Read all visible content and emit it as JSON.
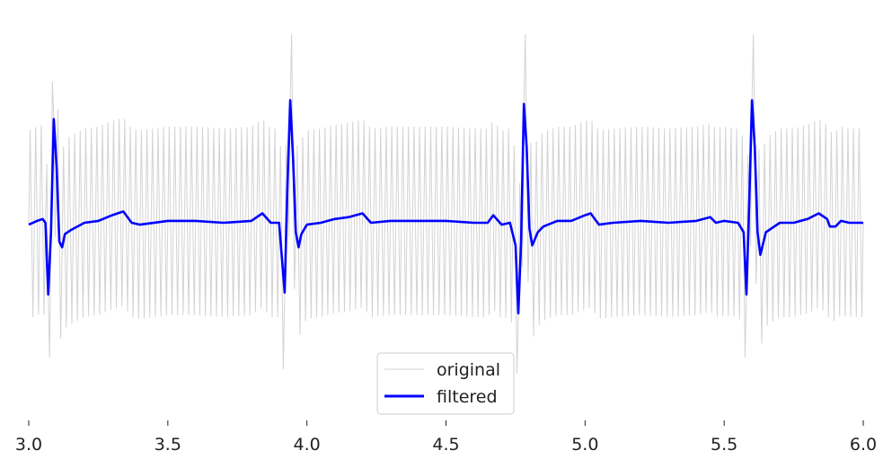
{
  "chart_data": {
    "type": "line",
    "title": "",
    "xlabel": "",
    "ylabel": "",
    "xlim": [
      3.0,
      6.0
    ],
    "ylim": [
      -1.0,
      1.0
    ],
    "x_ticks": [
      3.0,
      3.5,
      4.0,
      4.5,
      5.0,
      5.5,
      6.0
    ],
    "x_tick_labels": [
      "3.0",
      "3.5",
      "4.0",
      "4.5",
      "5.0",
      "5.5",
      "6.0"
    ],
    "y_axis_visible": false,
    "grid": false,
    "legend": {
      "placement": "bottom-center",
      "entries": [
        "original",
        "filtered"
      ]
    },
    "series": [
      {
        "name": "original",
        "color": "#d3d3d3",
        "sampling": {
          "x_start": 3.0,
          "x_end": 6.0,
          "count": 601
        },
        "description_of_values": "high-frequency oscillation (~50 Hz) of amplitude ~0.5 superimposed on the filtered ECG signal",
        "oscillation_amplitude": 0.5,
        "oscillation_frequency_hz": 50
      },
      {
        "name": "filtered",
        "color": "#0000ff",
        "points": [
          [
            3.0,
            -0.01
          ],
          [
            3.03,
            0.01
          ],
          [
            3.05,
            0.02
          ],
          [
            3.06,
            0.0
          ],
          [
            3.07,
            -0.38
          ],
          [
            3.08,
            -0.05
          ],
          [
            3.09,
            0.55
          ],
          [
            3.1,
            0.3
          ],
          [
            3.11,
            -0.1
          ],
          [
            3.12,
            -0.13
          ],
          [
            3.13,
            -0.06
          ],
          [
            3.15,
            -0.04
          ],
          [
            3.2,
            0.0
          ],
          [
            3.25,
            0.01
          ],
          [
            3.3,
            0.04
          ],
          [
            3.34,
            0.06
          ],
          [
            3.37,
            0.0
          ],
          [
            3.4,
            -0.01
          ],
          [
            3.5,
            0.01
          ],
          [
            3.6,
            0.01
          ],
          [
            3.7,
            0.0
          ],
          [
            3.8,
            0.01
          ],
          [
            3.84,
            0.05
          ],
          [
            3.87,
            0.0
          ],
          [
            3.9,
            0.0
          ],
          [
            3.92,
            -0.37
          ],
          [
            3.93,
            0.2
          ],
          [
            3.94,
            0.65
          ],
          [
            3.95,
            0.35
          ],
          [
            3.96,
            -0.05
          ],
          [
            3.97,
            -0.13
          ],
          [
            3.98,
            -0.06
          ],
          [
            4.0,
            -0.01
          ],
          [
            4.05,
            0.0
          ],
          [
            4.1,
            0.02
          ],
          [
            4.15,
            0.03
          ],
          [
            4.2,
            0.05
          ],
          [
            4.23,
            0.0
          ],
          [
            4.3,
            0.01
          ],
          [
            4.4,
            0.01
          ],
          [
            4.5,
            0.01
          ],
          [
            4.6,
            0.0
          ],
          [
            4.65,
            0.0
          ],
          [
            4.67,
            0.04
          ],
          [
            4.7,
            -0.01
          ],
          [
            4.73,
            0.0
          ],
          [
            4.75,
            -0.12
          ],
          [
            4.76,
            -0.48
          ],
          [
            4.77,
            -0.1
          ],
          [
            4.78,
            0.63
          ],
          [
            4.79,
            0.4
          ],
          [
            4.8,
            -0.03
          ],
          [
            4.81,
            -0.12
          ],
          [
            4.83,
            -0.05
          ],
          [
            4.85,
            -0.02
          ],
          [
            4.9,
            0.01
          ],
          [
            4.95,
            0.01
          ],
          [
            5.0,
            0.04
          ],
          [
            5.02,
            0.05
          ],
          [
            5.05,
            -0.01
          ],
          [
            5.1,
            0.0
          ],
          [
            5.2,
            0.01
          ],
          [
            5.3,
            0.0
          ],
          [
            5.4,
            0.01
          ],
          [
            5.45,
            0.03
          ],
          [
            5.47,
            0.0
          ],
          [
            5.5,
            0.01
          ],
          [
            5.55,
            0.0
          ],
          [
            5.57,
            -0.05
          ],
          [
            5.58,
            -0.38
          ],
          [
            5.59,
            0.1
          ],
          [
            5.6,
            0.65
          ],
          [
            5.61,
            0.4
          ],
          [
            5.62,
            -0.05
          ],
          [
            5.63,
            -0.17
          ],
          [
            5.65,
            -0.05
          ],
          [
            5.7,
            0.0
          ],
          [
            5.75,
            0.0
          ],
          [
            5.8,
            0.02
          ],
          [
            5.84,
            0.05
          ],
          [
            5.87,
            0.02
          ],
          [
            5.88,
            -0.02
          ],
          [
            5.9,
            -0.02
          ],
          [
            5.92,
            0.01
          ],
          [
            5.95,
            0.0
          ],
          [
            6.0,
            0.0
          ]
        ]
      }
    ]
  }
}
